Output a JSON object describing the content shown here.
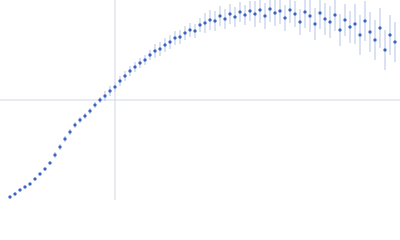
{
  "chart_data": {
    "type": "scatter",
    "x": [
      10,
      15,
      20,
      25,
      30,
      35,
      40,
      45,
      50,
      55,
      60,
      65,
      70,
      75,
      80,
      85,
      90,
      95,
      100,
      105,
      110,
      115,
      120,
      125,
      130,
      135,
      140,
      145,
      150,
      155,
      160,
      165,
      170,
      175,
      180,
      185,
      190,
      195,
      200,
      205,
      210,
      215,
      220,
      225,
      230,
      235,
      240,
      245,
      250,
      255,
      260,
      265,
      270,
      275,
      280,
      285,
      290,
      295,
      300,
      305,
      310,
      315,
      320,
      325,
      330,
      335,
      340,
      345,
      350,
      355,
      360,
      365,
      370,
      375,
      380,
      385,
      390,
      395
    ],
    "values": [
      3,
      6,
      10,
      13,
      16,
      21,
      26,
      31,
      37,
      45,
      53,
      61,
      68,
      75,
      80,
      84,
      89,
      95,
      100,
      104,
      109,
      113,
      119,
      124,
      129,
      133,
      137,
      140,
      145,
      149,
      151,
      155,
      158,
      162,
      163,
      167,
      170,
      169,
      175,
      177,
      180,
      179,
      184,
      181,
      186,
      183,
      188,
      185,
      189,
      186,
      190,
      184,
      191,
      187,
      189,
      182,
      190,
      186,
      178,
      188,
      184,
      176,
      187,
      181,
      178,
      185,
      170,
      180,
      173,
      176,
      165,
      179,
      168,
      160,
      172,
      150,
      165,
      158
    ],
    "errors": [
      1,
      1,
      1,
      1,
      1,
      1,
      1,
      1,
      1,
      3,
      3,
      3,
      3,
      3,
      3,
      3,
      3,
      3,
      3,
      5,
      5,
      5,
      5,
      5,
      5,
      5,
      5,
      5,
      5,
      7,
      7,
      7,
      7,
      7,
      7,
      7,
      7,
      7,
      7,
      10,
      10,
      10,
      10,
      10,
      10,
      10,
      10,
      10,
      10,
      13,
      13,
      13,
      13,
      13,
      13,
      13,
      13,
      13,
      13,
      16,
      16,
      16,
      16,
      16,
      16,
      16,
      16,
      16,
      16,
      20,
      20,
      20,
      20,
      20,
      20,
      20,
      20,
      20
    ],
    "color": "#3a64c0",
    "error_color": "#b4c3e6",
    "xlim": [
      0,
      400
    ],
    "ylim": [
      0,
      200
    ],
    "xticks": [
      115
    ],
    "yticks": [
      100
    ],
    "grid": true
  }
}
